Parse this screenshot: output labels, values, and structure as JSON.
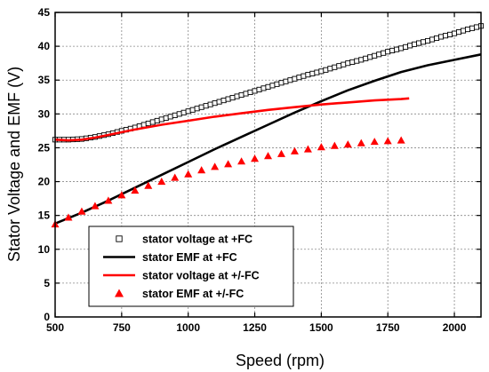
{
  "chart_data": {
    "type": "line",
    "xlabel": "Speed (rpm)",
    "ylabel": "Stator Voltage and EMF (V)",
    "xlim": [
      500,
      2100
    ],
    "ylim": [
      0,
      45
    ],
    "x_ticks": [
      500,
      750,
      1000,
      1250,
      1500,
      1750,
      2000
    ],
    "y_ticks": [
      0,
      5,
      10,
      15,
      20,
      25,
      30,
      35,
      40,
      45
    ],
    "grid": "dotted, major ticks on both axes",
    "legend_position": "bottom-left",
    "series": [
      {
        "name": "stator voltage at +FC",
        "style": "open-square-markers",
        "color": "#000000",
        "x": [
          500,
          550,
          600,
          650,
          700,
          750,
          800,
          850,
          900,
          950,
          1000,
          1050,
          1100,
          1150,
          1200,
          1250,
          1300,
          1350,
          1400,
          1450,
          1500,
          1550,
          1600,
          1650,
          1700,
          1750,
          1800,
          1850,
          1900,
          1950,
          2000,
          2050,
          2100
        ],
        "y": [
          26.2,
          26.2,
          26.3,
          26.6,
          27.0,
          27.5,
          28.0,
          28.6,
          29.2,
          29.8,
          30.4,
          31.0,
          31.6,
          32.2,
          32.8,
          33.4,
          34.0,
          34.6,
          35.2,
          35.8,
          36.3,
          36.9,
          37.5,
          38.0,
          38.6,
          39.2,
          39.7,
          40.3,
          40.8,
          41.4,
          41.9,
          42.5,
          43.0
        ]
      },
      {
        "name": "stator EMF at +FC",
        "style": "solid-line",
        "color": "#000000",
        "x": [
          500,
          600,
          700,
          800,
          900,
          1000,
          1100,
          1200,
          1300,
          1400,
          1500,
          1600,
          1700,
          1800,
          1900,
          2000,
          2100
        ],
        "y": [
          13.8,
          15.4,
          17.2,
          19.1,
          21.0,
          22.9,
          24.8,
          26.6,
          28.4,
          30.2,
          31.9,
          33.5,
          34.9,
          36.2,
          37.2,
          38.0,
          38.8
        ]
      },
      {
        "name": "stator voltage at +/-FC",
        "style": "solid-line",
        "color": "#ff0000",
        "x": [
          500,
          550,
          600,
          650,
          700,
          750,
          800,
          900,
          1000,
          1100,
          1200,
          1300,
          1400,
          1500,
          1600,
          1700,
          1800,
          1830
        ],
        "y": [
          26.2,
          26.1,
          26.2,
          26.5,
          26.9,
          27.3,
          27.7,
          28.4,
          29.0,
          29.6,
          30.1,
          30.6,
          31.0,
          31.4,
          31.7,
          32.0,
          32.2,
          32.3
        ]
      },
      {
        "name": "stator EMF at +/-FC",
        "style": "filled-triangle-markers",
        "color": "#ff0000",
        "x": [
          500,
          550,
          600,
          650,
          700,
          750,
          800,
          850,
          900,
          950,
          1000,
          1050,
          1100,
          1150,
          1200,
          1250,
          1300,
          1350,
          1400,
          1450,
          1500,
          1550,
          1600,
          1650,
          1700,
          1750,
          1800
        ],
        "y": [
          13.7,
          14.7,
          15.6,
          16.4,
          17.2,
          18.0,
          18.7,
          19.4,
          20.0,
          20.6,
          21.1,
          21.7,
          22.2,
          22.6,
          23.0,
          23.4,
          23.8,
          24.1,
          24.5,
          24.8,
          25.1,
          25.3,
          25.5,
          25.7,
          25.9,
          26.0,
          26.1
        ]
      }
    ]
  }
}
